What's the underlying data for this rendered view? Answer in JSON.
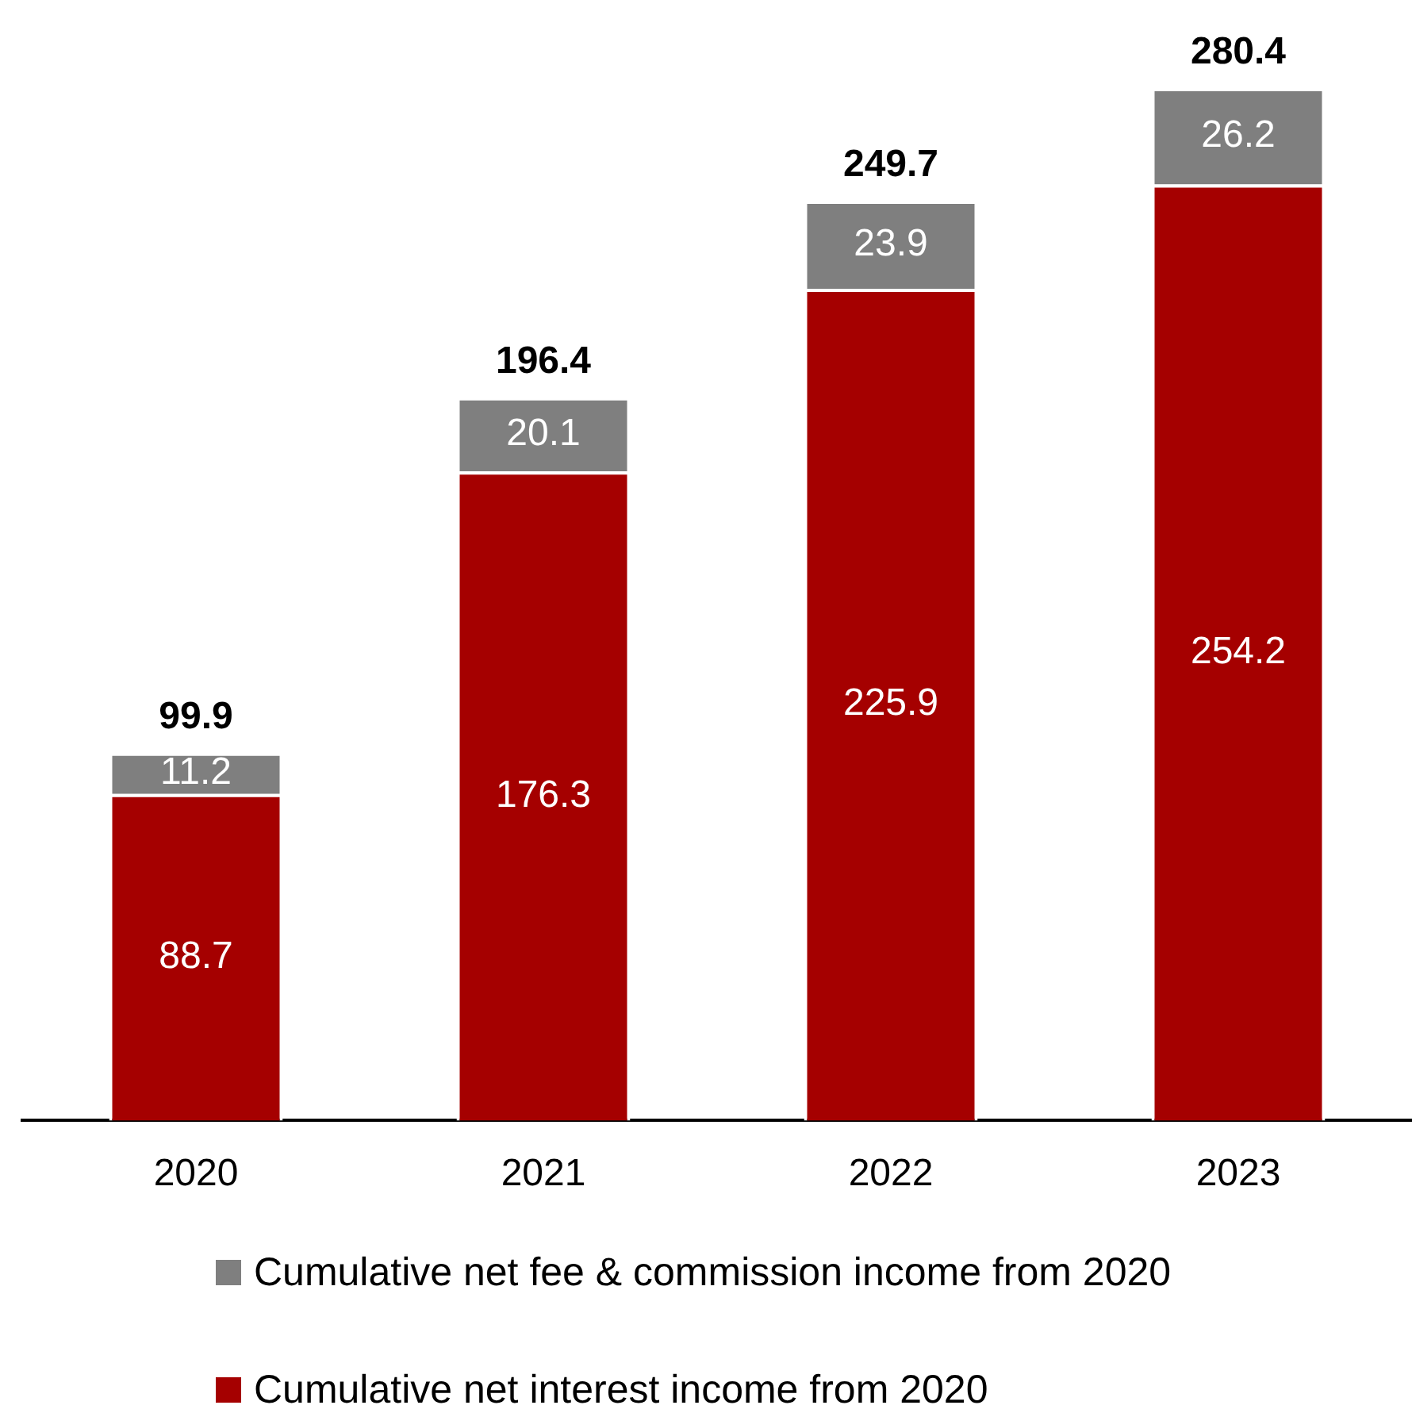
{
  "chart_data": {
    "type": "bar",
    "stacked": true,
    "categories": [
      "2020",
      "2021",
      "2022",
      "2023"
    ],
    "series": [
      {
        "name": "Cumulative net interest income from 2020",
        "color": "#a50000",
        "values": [
          88.7,
          176.3,
          225.9,
          254.2
        ]
      },
      {
        "name": "Cumulative net fee & commission income from 2020",
        "color": "#7f7f7f",
        "values": [
          11.2,
          20.1,
          23.9,
          26.2
        ]
      }
    ],
    "totals": [
      "99.9",
      "196.4",
      "249.7",
      "280.4"
    ],
    "data_labels": true,
    "tick_labels": "x",
    "grid": false,
    "legend": "bottom"
  }
}
